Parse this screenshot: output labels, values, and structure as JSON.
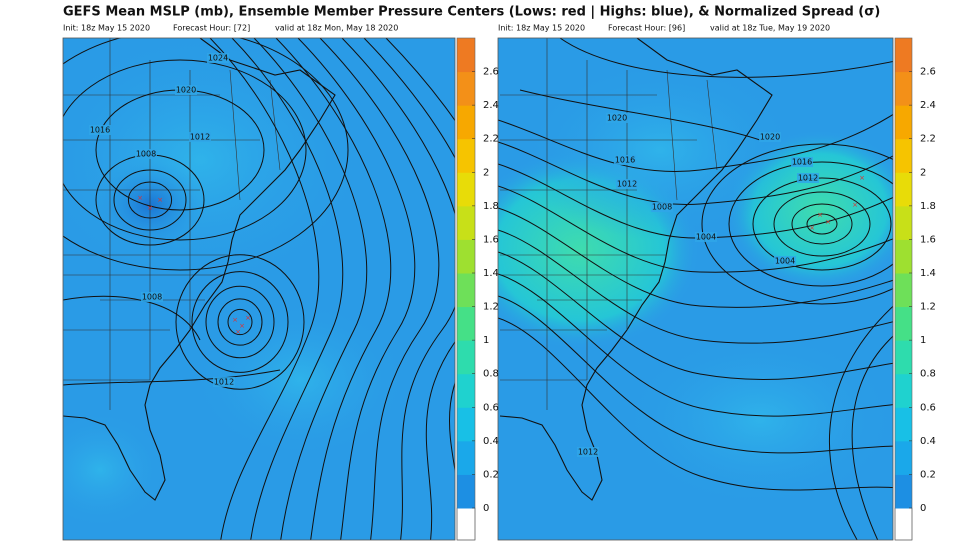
{
  "title": "GEFS Mean MSLP (mb), Ensemble Member Pressure Centers (Lows: red | Highs: blue), & Normalized Spread (σ)",
  "panels": [
    {
      "init": "Init: 18z May 15 2020",
      "forecast_hour": "Forecast Hour: [72]",
      "valid": "valid at 18z Mon, May 18 2020",
      "contour_labels": [
        "1024",
        "1020",
        "1016",
        "1012",
        "1008",
        "1008",
        "1012"
      ],
      "colorbar": {
        "lim": [
          0,
          2.8
        ],
        "ticks": [
          0,
          0.2,
          0.4,
          0.6,
          0.8,
          1,
          1.2,
          1.4,
          1.6,
          1.8,
          2,
          2.2,
          2.4,
          2.6
        ],
        "colors": [
          "#1d8fe3",
          "#1aa8ea",
          "#18c0e6",
          "#1fd2cf",
          "#2edcad",
          "#45e087",
          "#6ee059",
          "#9ee030",
          "#c8e018",
          "#e8dc08",
          "#f6c400",
          "#f7a800",
          "#f39018",
          "#ee7a22"
        ]
      }
    },
    {
      "init": "Init: 18z May 15 2020",
      "forecast_hour": "Forecast Hour: [96]",
      "valid": "valid at 18z Tue, May 19 2020",
      "contour_labels": [
        "1020",
        "1020",
        "1016",
        "1016",
        "1012",
        "1012",
        "1008",
        "1004",
        "1004",
        "1012"
      ],
      "colorbar": {
        "lim": [
          0,
          2.8
        ],
        "ticks": [
          0,
          0.2,
          0.4,
          0.6,
          0.8,
          1,
          1.2,
          1.4,
          1.6,
          1.8,
          2,
          2.2,
          2.4,
          2.6
        ],
        "colors": [
          "#1d8fe3",
          "#1aa8ea",
          "#18c0e6",
          "#1fd2cf",
          "#2edcad",
          "#45e087",
          "#6ee059",
          "#9ee030",
          "#c8e018",
          "#e8dc08",
          "#f6c400",
          "#f7a800",
          "#f39018",
          "#ee7a22"
        ]
      }
    }
  ]
}
